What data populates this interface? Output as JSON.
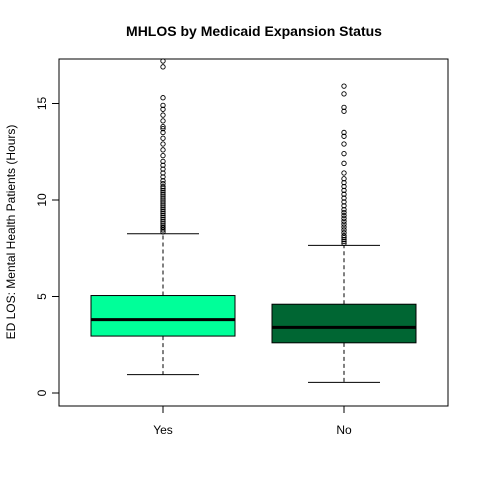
{
  "chart_data": {
    "type": "box",
    "title": "MHLOS by Medicaid Expansion Status",
    "ylabel": "ED LOS: Mental Health Patients (Hours)",
    "xlabel": "",
    "ylim": [
      0,
      17.2
    ],
    "yticks": [
      0,
      5,
      10,
      15
    ],
    "categories": [
      "Yes",
      "No"
    ],
    "series": [
      {
        "category": "Yes",
        "color": "#00FF99",
        "whisker_low": 0.95,
        "q1": 2.95,
        "median": 3.8,
        "q3": 5.05,
        "whisker_high": 8.25,
        "outliers": [
          8.35,
          8.45,
          8.55,
          8.6,
          8.7,
          8.8,
          8.9,
          9.0,
          9.1,
          9.2,
          9.3,
          9.4,
          9.5,
          9.6,
          9.7,
          9.8,
          9.9,
          10.0,
          10.1,
          10.2,
          10.3,
          10.4,
          10.5,
          10.6,
          10.7,
          10.85,
          11.0,
          11.2,
          11.4,
          11.6,
          11.8,
          12.0,
          12.3,
          12.6,
          12.9,
          13.2,
          13.5,
          13.7,
          13.8,
          14.1,
          14.4,
          14.7,
          14.9,
          15.3,
          16.9,
          17.2
        ]
      },
      {
        "category": "No",
        "color": "#006633",
        "whisker_low": 0.55,
        "q1": 2.6,
        "median": 3.4,
        "q3": 4.6,
        "whisker_high": 7.65,
        "outliers": [
          7.75,
          7.85,
          7.95,
          8.05,
          8.15,
          8.3,
          8.45,
          8.6,
          8.75,
          8.9,
          9.05,
          9.2,
          9.35,
          9.5,
          9.7,
          9.9,
          10.1,
          10.3,
          10.5,
          10.7,
          10.9,
          11.1,
          11.4,
          11.9,
          12.4,
          12.9,
          13.3,
          13.5,
          14.6,
          14.8,
          15.5,
          15.9
        ]
      }
    ]
  }
}
